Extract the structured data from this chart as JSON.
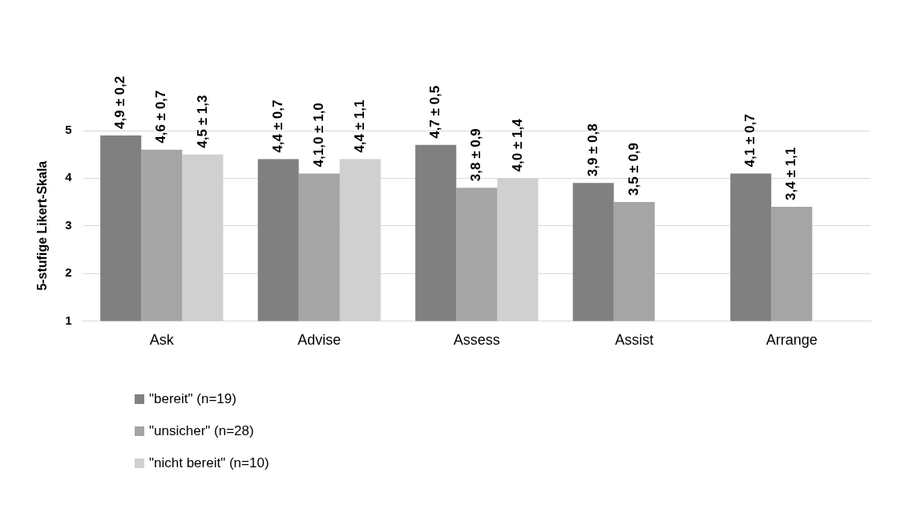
{
  "chart_data": {
    "type": "bar",
    "ylabel": "5-stufige Likert-Skala",
    "categories": [
      "Ask",
      "Advise",
      "Assess",
      "Assist",
      "Arrange"
    ],
    "series": [
      {
        "name": "\"bereit\" (n=19)",
        "color": "#808080",
        "values": [
          4.9,
          4.4,
          4.7,
          3.9,
          4.1
        ],
        "value_labels": [
          "4,9 ± 0,2",
          "4,4 ± 0,7",
          "4,7 ± 0,5",
          "3,9 ± 0,8",
          "4,1 ± 0,7"
        ]
      },
      {
        "name": "\"unsicher\" (n=28)",
        "color": "#a5a5a5",
        "values": [
          4.6,
          4.1,
          3.8,
          3.5,
          3.4
        ],
        "value_labels": [
          "4,6 ± 0,7",
          "4,1,0 ± 1,0",
          "3,8 ± 0,9",
          "3,5 ± 0,9",
          "3,4 ± 1,1"
        ]
      },
      {
        "name": "\"nicht bereit\" (n=10)",
        "color": "#d0d0d0",
        "values": [
          4.5,
          4.4,
          4.0,
          null,
          null
        ],
        "value_labels": [
          "4,5 ± 1,3",
          "4,4 ± 1,1",
          "4,0 ± 1,4",
          null,
          null
        ]
      }
    ],
    "ylim": [
      1,
      5
    ],
    "yticks": [
      1,
      2,
      3,
      4,
      5
    ],
    "grid": "y",
    "legend": "bottom"
  }
}
